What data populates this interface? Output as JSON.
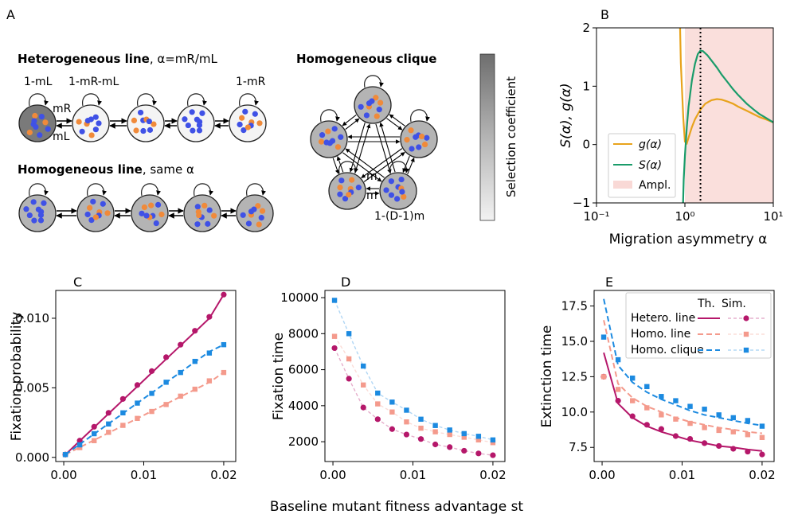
{
  "panel_labels": {
    "a": "A",
    "b": "B",
    "c": "C",
    "d": "D",
    "e": "E"
  },
  "schematic": {
    "het_title": "Heterogeneous line",
    "het_suffix": ", α=mR/mL",
    "hom_title": "Homogeneous line",
    "hom_suffix": ", same α",
    "clique_title": "Homogeneous clique",
    "colorbar_label": "Selection coefficient",
    "loop_1mL": "1-mL",
    "loop_1mRmL": "1-mR-mL",
    "loop_1mR": "1-mR",
    "mig_R": "mR",
    "mig_L": "mL",
    "mig_m1": "m",
    "mig_m2": "m",
    "clique_loop": "1-(D-1)m"
  },
  "chart_data": [
    {
      "id": "B",
      "type": "line",
      "xscale": "log",
      "xlim": [
        0.1,
        10
      ],
      "ylim": [
        -1,
        2
      ],
      "xticks": [
        0.1,
        1,
        10
      ],
      "xtick_labels": [
        "10⁻¹",
        "10⁰",
        "10¹"
      ],
      "yticks": [
        -1,
        0,
        1,
        2
      ],
      "ytick_labels": [
        "−1",
        "0",
        "1",
        "2"
      ],
      "xlabel": "Migration asymmetry α",
      "ylabel": "S(α), g(α)",
      "legend": [
        "g(α)",
        "S(α)",
        "Ampl."
      ],
      "legend_position": "lower-right",
      "amplification_region": [
        1,
        10
      ],
      "vline_x": 1.5,
      "series": [
        {
          "name": "g(α)",
          "color": "#e8a31c",
          "x": [
            0.88,
            0.9,
            0.93,
            0.96,
            1.0,
            1.05,
            1.1,
            1.2,
            1.3,
            1.4,
            1.5,
            1.7,
            2.0,
            2.3,
            2.6,
            3.0,
            3.5,
            4.0,
            5.0,
            6.0,
            7.0,
            8.0,
            10.0
          ],
          "y": [
            2.1,
            1.4,
            0.9,
            0.45,
            0.05,
            0.02,
            0.12,
            0.3,
            0.43,
            0.52,
            0.6,
            0.7,
            0.76,
            0.78,
            0.77,
            0.74,
            0.7,
            0.65,
            0.58,
            0.52,
            0.47,
            0.44,
            0.38
          ]
        },
        {
          "name": "S(α)",
          "color": "#1a9c6a",
          "x": [
            0.95,
            0.97,
            1.0,
            1.05,
            1.1,
            1.2,
            1.3,
            1.4,
            1.5,
            1.6,
            1.8,
            2.0,
            2.3,
            2.6,
            3.0,
            3.5,
            4.0,
            5.0,
            6.0,
            7.0,
            8.0,
            10.0
          ],
          "y": [
            -1.1,
            -0.6,
            -0.2,
            0.3,
            0.65,
            1.1,
            1.38,
            1.55,
            1.61,
            1.6,
            1.53,
            1.44,
            1.32,
            1.2,
            1.08,
            0.95,
            0.85,
            0.7,
            0.6,
            0.52,
            0.47,
            0.38
          ]
        }
      ]
    },
    {
      "id": "C",
      "type": "line",
      "xlim": [
        -0.001,
        0.0215
      ],
      "ylim": [
        -0.0003,
        0.012
      ],
      "xticks": [
        0,
        0.01,
        0.02
      ],
      "xtick_labels": [
        "0.00",
        "0.01",
        "0.02"
      ],
      "yticks": [
        0,
        0.005,
        0.01
      ],
      "ytick_labels": [
        "0.000",
        "0.005",
        "0.010"
      ],
      "ylabel": "Fixation probability",
      "x": [
        0.0002,
        0.002,
        0.0038,
        0.0056,
        0.0074,
        0.0092,
        0.011,
        0.0128,
        0.0146,
        0.0164,
        0.0182,
        0.02
      ],
      "series": [
        {
          "name": "Hetero. line",
          "color": "#b5176a",
          "theory": [
            0.0002,
            0.00118,
            0.00216,
            0.00314,
            0.00412,
            0.0051,
            0.00608,
            0.00706,
            0.00804,
            0.00902,
            0.01,
            0.0117
          ],
          "sim": [
            0.0002,
            0.0012,
            0.0022,
            0.0032,
            0.0042,
            0.0052,
            0.0062,
            0.0072,
            0.0081,
            0.0091,
            0.0101,
            0.0117
          ]
        },
        {
          "name": "Homo. line",
          "color": "#f49a8c",
          "theory": [
            0.0002,
            0.00072,
            0.00124,
            0.00176,
            0.00228,
            0.0028,
            0.00332,
            0.00384,
            0.00436,
            0.00488,
            0.0054,
            0.0061
          ],
          "sim": [
            0.0002,
            0.0007,
            0.0012,
            0.0018,
            0.0023,
            0.0028,
            0.0033,
            0.0038,
            0.0044,
            0.0049,
            0.0055,
            0.0061
          ]
        },
        {
          "name": "Homo. clique",
          "color": "#1c8ae0",
          "theory": [
            0.0002,
            0.00094,
            0.00168,
            0.00242,
            0.00316,
            0.0039,
            0.00464,
            0.00538,
            0.00612,
            0.00686,
            0.0076,
            0.0081
          ],
          "sim": [
            0.0002,
            0.0009,
            0.0017,
            0.0024,
            0.0032,
            0.0039,
            0.0046,
            0.0054,
            0.0061,
            0.0069,
            0.0075,
            0.0081
          ]
        }
      ]
    },
    {
      "id": "D",
      "type": "scatter",
      "xlim": [
        -0.001,
        0.0215
      ],
      "ylim": [
        900,
        10400
      ],
      "xticks": [
        0,
        0.01,
        0.02
      ],
      "xtick_labels": [
        "0.00",
        "0.01",
        "0.02"
      ],
      "yticks": [
        2000,
        4000,
        6000,
        8000,
        10000
      ],
      "ytick_labels": [
        "2000",
        "4000",
        "6000",
        "8000",
        "10000"
      ],
      "ylabel": "Fixation time",
      "x": [
        0.0002,
        0.002,
        0.0038,
        0.0056,
        0.0074,
        0.0092,
        0.011,
        0.0128,
        0.0146,
        0.0164,
        0.0182,
        0.02
      ],
      "series": [
        {
          "name": "Hetero. line",
          "color": "#b5176a",
          "sim": [
            7200,
            5500,
            3900,
            3250,
            2700,
            2400,
            2150,
            1850,
            1700,
            1500,
            1350,
            1250
          ]
        },
        {
          "name": "Homo. line",
          "color": "#f49a8c",
          "sim": [
            7850,
            6600,
            5150,
            4100,
            3650,
            3100,
            2750,
            2550,
            2400,
            2250,
            2100,
            1950
          ]
        },
        {
          "name": "Homo. clique",
          "color": "#1c8ae0",
          "sim": [
            9850,
            8000,
            6200,
            4700,
            4200,
            3750,
            3250,
            2900,
            2650,
            2450,
            2300,
            2100
          ]
        }
      ]
    },
    {
      "id": "E",
      "type": "line",
      "xlim": [
        -0.001,
        0.0215
      ],
      "ylim": [
        6.5,
        18.6
      ],
      "xticks": [
        0,
        0.01,
        0.02
      ],
      "xtick_labels": [
        "0.00",
        "0.01",
        "0.02"
      ],
      "yticks": [
        7.5,
        10,
        12.5,
        15,
        17.5
      ],
      "ytick_labels": [
        "7.5",
        "10.0",
        "12.5",
        "15.0",
        "17.5"
      ],
      "ylabel": "Extinction time",
      "legend_header": [
        "Th.",
        "Sim."
      ],
      "x": [
        0.0002,
        0.002,
        0.0038,
        0.0056,
        0.0074,
        0.0092,
        0.011,
        0.0128,
        0.0146,
        0.0164,
        0.0182,
        0.02
      ],
      "series": [
        {
          "name": "Hetero. line",
          "color": "#b5176a",
          "theory": [
            14.2,
            10.6,
            9.6,
            9.0,
            8.6,
            8.3,
            8.0,
            7.8,
            7.6,
            7.5,
            7.35,
            7.25
          ],
          "sim": [
            12.5,
            10.8,
            9.7,
            9.1,
            8.8,
            8.3,
            8.1,
            7.8,
            7.6,
            7.4,
            7.2,
            7.0
          ]
        },
        {
          "name": "Homo. line",
          "color": "#f49a8c",
          "theory": [
            16.5,
            12.0,
            11.0,
            10.4,
            10.0,
            9.6,
            9.3,
            9.1,
            8.9,
            8.75,
            8.6,
            8.5
          ],
          "sim": [
            12.5,
            11.6,
            10.8,
            10.3,
            9.8,
            9.5,
            9.2,
            8.9,
            8.7,
            8.6,
            8.4,
            8.2
          ]
        },
        {
          "name": "Homo. clique",
          "color": "#1c8ae0",
          "theory": [
            18.0,
            13.3,
            12.1,
            11.4,
            10.9,
            10.5,
            10.1,
            9.8,
            9.6,
            9.4,
            9.2,
            9.05
          ],
          "sim": [
            15.3,
            13.7,
            12.4,
            11.8,
            11.1,
            10.8,
            10.4,
            10.2,
            9.8,
            9.6,
            9.4,
            9.0
          ]
        }
      ]
    }
  ],
  "shared_xlabel": "Baseline mutant fitness advantage st"
}
